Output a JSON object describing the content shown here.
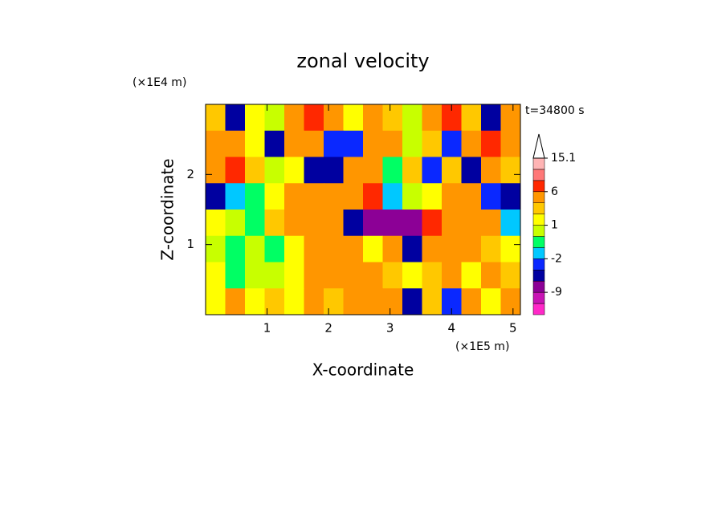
{
  "chart_data": {
    "type": "contour",
    "title": "zonal velocity",
    "x_label": "X-coordinate",
    "y_label": "Z-coordinate",
    "x_unit": "(×1E5 m)",
    "y_unit": "(×1E4 m)",
    "time_label": "t=34800 s",
    "xlim": [
      0,
      5.12
    ],
    "ylim": [
      0,
      3
    ],
    "xticks": [
      1,
      2,
      3,
      4,
      5
    ],
    "yticks": [
      1,
      2
    ],
    "x": [
      0.16,
      0.48,
      0.8,
      1.12,
      1.44,
      1.76,
      2.08,
      2.4,
      2.72,
      3.04,
      3.36,
      3.68,
      4,
      4.32,
      4.64,
      4.96
    ],
    "z": [
      2.8125,
      2.4375,
      2.0625,
      1.6875,
      1.3125,
      0.9375,
      0.5625,
      0.1875
    ],
    "values": [
      [
        2,
        -4,
        1,
        0,
        3,
        6,
        4,
        1,
        3,
        2,
        0,
        3,
        6,
        2,
        -4,
        3
      ],
      [
        3,
        4,
        1,
        -4,
        3,
        4,
        -3,
        -3,
        4,
        3,
        0,
        2,
        -3,
        4,
        6,
        3
      ],
      [
        5,
        6,
        2,
        0,
        1,
        -5,
        -4,
        3,
        3,
        -1,
        2,
        -3,
        2,
        -4,
        4,
        2
      ],
      [
        -4,
        -2,
        -1,
        1,
        4,
        3,
        4,
        5,
        6,
        -2,
        0,
        1,
        3,
        4,
        -3,
        -6
      ],
      [
        1,
        0,
        -1,
        2,
        4,
        5,
        3,
        -6,
        -7,
        -7,
        -8,
        6,
        5,
        4,
        3,
        -2
      ],
      [
        0,
        -1,
        0,
        -1,
        1,
        3,
        4,
        3,
        1,
        3,
        -4,
        5,
        3,
        4,
        2,
        1
      ],
      [
        1,
        -1,
        0,
        0,
        1,
        3,
        4,
        3,
        4,
        2,
        1,
        2,
        3,
        1,
        3,
        2
      ],
      [
        1,
        3,
        1,
        2,
        1,
        3,
        2,
        4,
        5,
        3,
        -4,
        2,
        -3,
        4,
        1,
        3
      ]
    ],
    "levels": [
      -12,
      -9,
      -6,
      -3,
      -2,
      -1,
      0,
      1,
      2,
      3,
      6,
      9,
      12,
      15.1
    ],
    "colors": [
      "#ff28c8",
      "#c814b4",
      "#8c0096",
      "#0000a0",
      "#0a28ff",
      "#00c8ff",
      "#00ff64",
      "#c8ff00",
      "#ffff00",
      "#ffc800",
      "#ff9600",
      "#ff2800",
      "#ff7878",
      "#ffb4b4",
      "#ffffff"
    ],
    "colorbar_ticks": [
      15.1,
      6,
      1,
      -2,
      -9
    ]
  }
}
